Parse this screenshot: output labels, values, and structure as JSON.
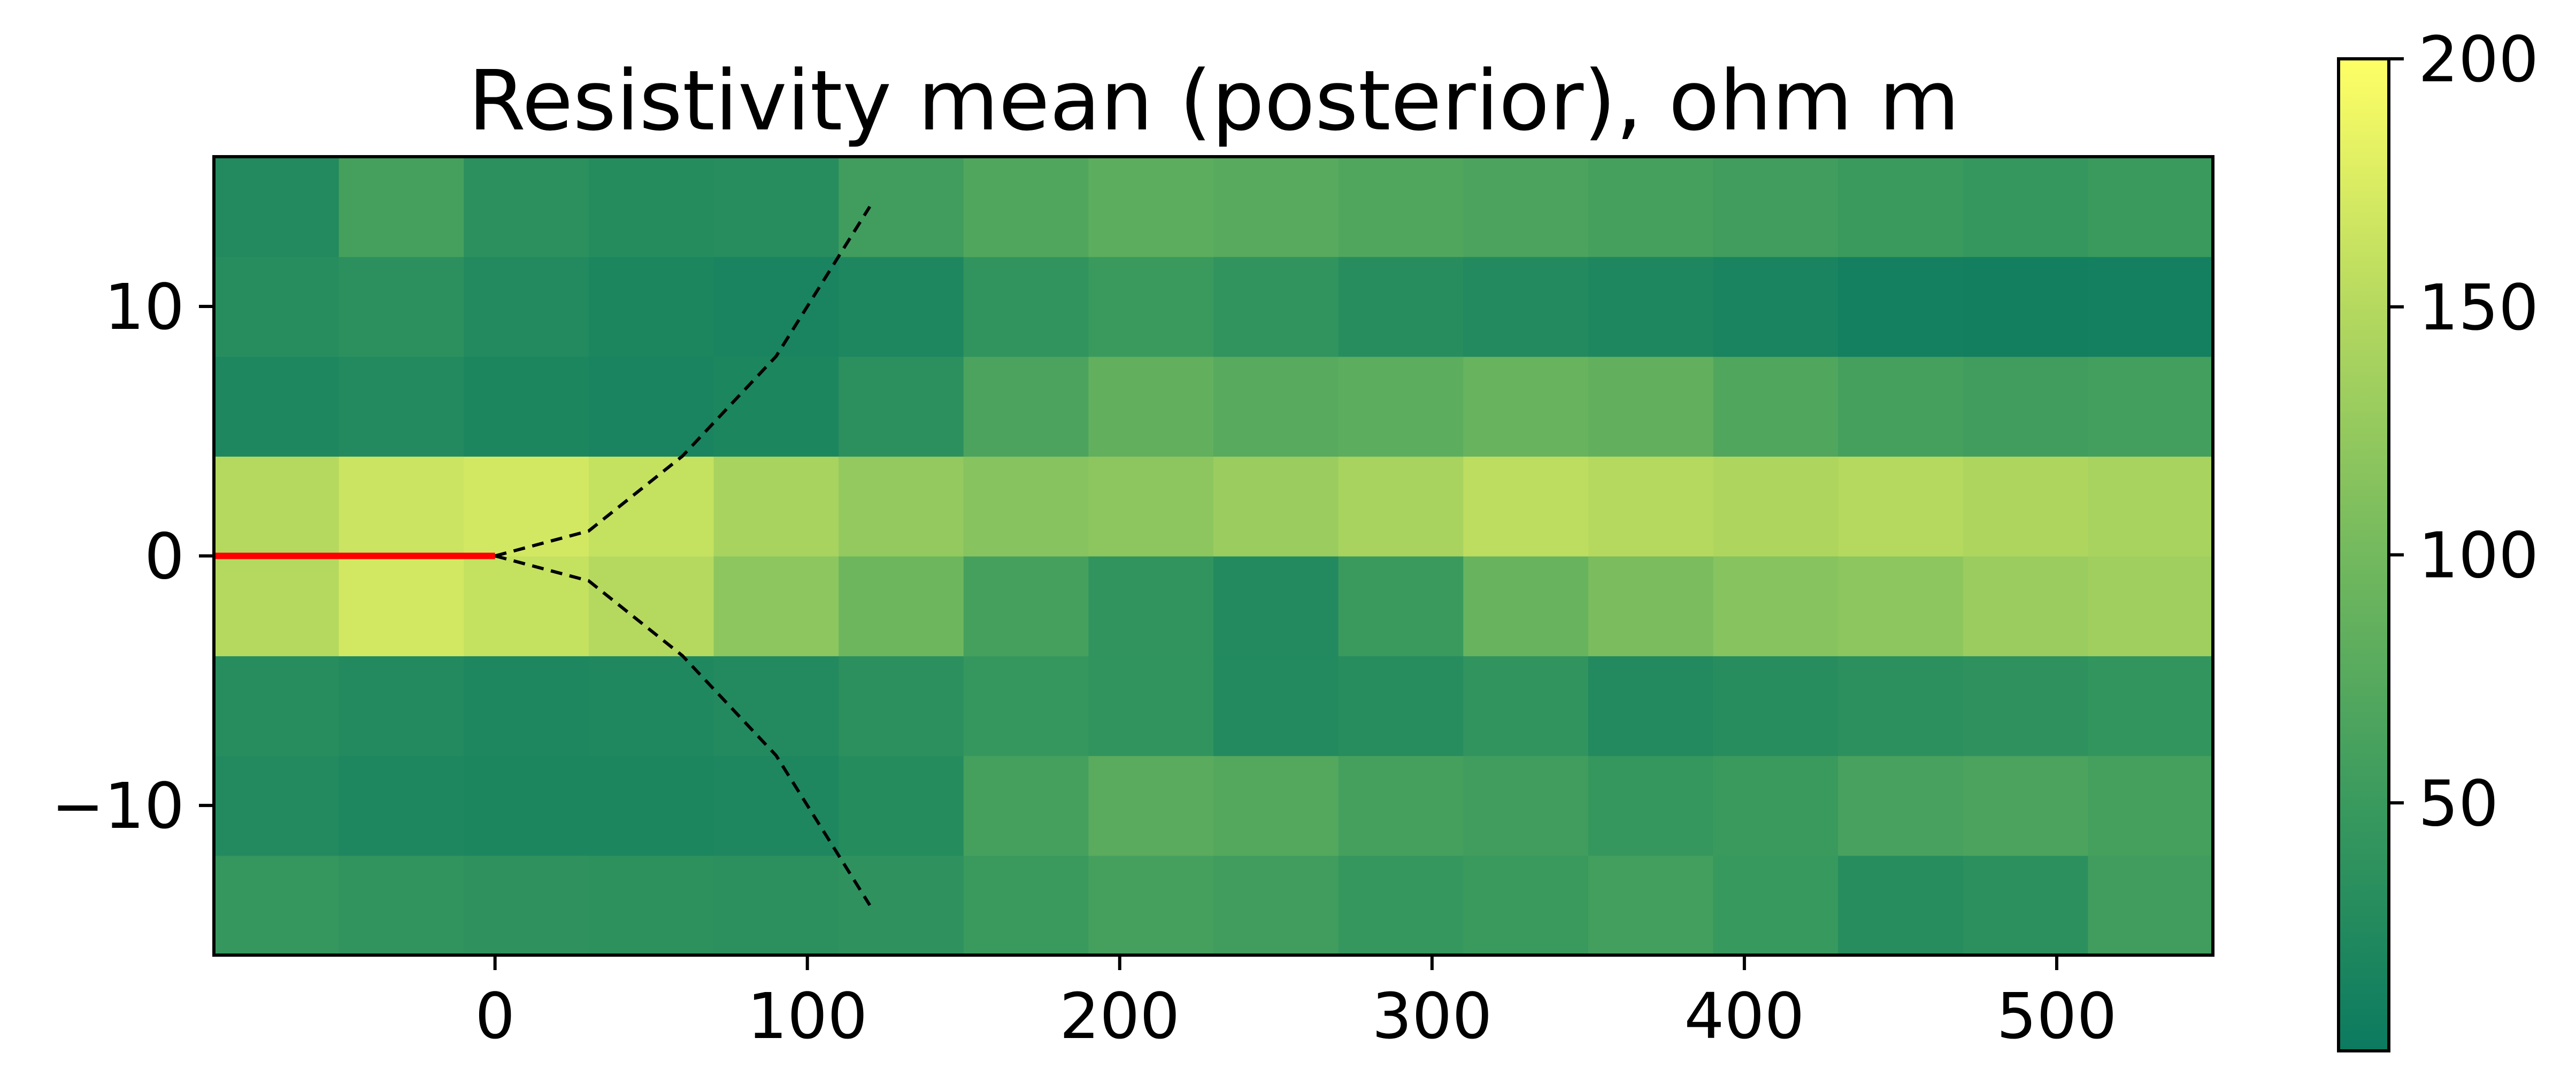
{
  "chart_data": {
    "type": "heatmap",
    "title": "Resistivity mean (posterior), ohm m",
    "xlabel": "",
    "ylabel": "",
    "xlim": [
      -90,
      550
    ],
    "ylim": [
      -16,
      16
    ],
    "x_ticks": [
      {
        "value": 0,
        "label": "0"
      },
      {
        "value": 100,
        "label": "100"
      },
      {
        "value": 200,
        "label": "200"
      },
      {
        "value": 300,
        "label": "300"
      },
      {
        "value": 400,
        "label": "400"
      },
      {
        "value": 500,
        "label": "500"
      }
    ],
    "y_ticks": [
      {
        "value": 10,
        "label": "10"
      },
      {
        "value": 0,
        "label": "0"
      },
      {
        "value": -10,
        "label": "−10"
      }
    ],
    "colorbar": {
      "min": 0,
      "max": 200,
      "ticks": [
        {
          "value": 50,
          "label": "50"
        },
        {
          "value": 100,
          "label": "100"
        },
        {
          "value": 150,
          "label": "150"
        },
        {
          "value": 200,
          "label": "200"
        }
      ],
      "colors": [
        "#0b7a5f",
        "#3a9a5e",
        "#73b95e",
        "#b5d95f",
        "#ffff66"
      ]
    },
    "grid": false,
    "legend": "none",
    "red_line": {
      "x": [
        -90,
        0
      ],
      "y": [
        0,
        0
      ],
      "color": "#ff0000"
    },
    "dashed_upper": {
      "x": [
        0,
        30,
        60,
        90,
        120
      ],
      "y": [
        0,
        1,
        4,
        8,
        14
      ],
      "color": "#000000"
    },
    "dashed_lower": {
      "x": [
        0,
        30,
        60,
        90,
        120
      ],
      "y": [
        0,
        -1,
        -4,
        -8,
        -14
      ],
      "color": "#000000"
    },
    "heatmap_grid": {
      "x": [
        -90,
        -50,
        -10,
        30,
        70,
        110,
        150,
        190,
        230,
        270,
        310,
        350,
        390,
        430,
        470,
        510,
        550
      ],
      "y": [
        -16,
        -12,
        -8,
        -4,
        0,
        4,
        8,
        12,
        16
      ],
      "z": [
        [
          45,
          40,
          38,
          36,
          35,
          38,
          50,
          60,
          55,
          45,
          50,
          58,
          48,
          30,
          35,
          55
        ],
        [
          25,
          20,
          18,
          18,
          20,
          28,
          60,
          78,
          72,
          60,
          55,
          45,
          50,
          62,
          65,
          60
        ],
        [
          30,
          25,
          20,
          22,
          25,
          35,
          45,
          40,
          25,
          30,
          40,
          25,
          30,
          35,
          38,
          42
        ],
        [
          150,
          170,
          160,
          150,
          120,
          95,
          60,
          40,
          25,
          50,
          90,
          105,
          115,
          120,
          130,
          135
        ],
        [
          150,
          165,
          170,
          160,
          140,
          125,
          115,
          120,
          130,
          140,
          155,
          150,
          145,
          150,
          145,
          140
        ],
        [
          20,
          25,
          18,
          15,
          18,
          35,
          65,
          85,
          75,
          80,
          90,
          85,
          70,
          60,
          55,
          58
        ],
        [
          30,
          35,
          25,
          18,
          15,
          20,
          40,
          50,
          40,
          30,
          25,
          20,
          15,
          10,
          8,
          10
        ],
        [
          25,
          60,
          35,
          28,
          30,
          55,
          70,
          80,
          75,
          70,
          65,
          60,
          55,
          50,
          45,
          50
        ]
      ]
    }
  }
}
